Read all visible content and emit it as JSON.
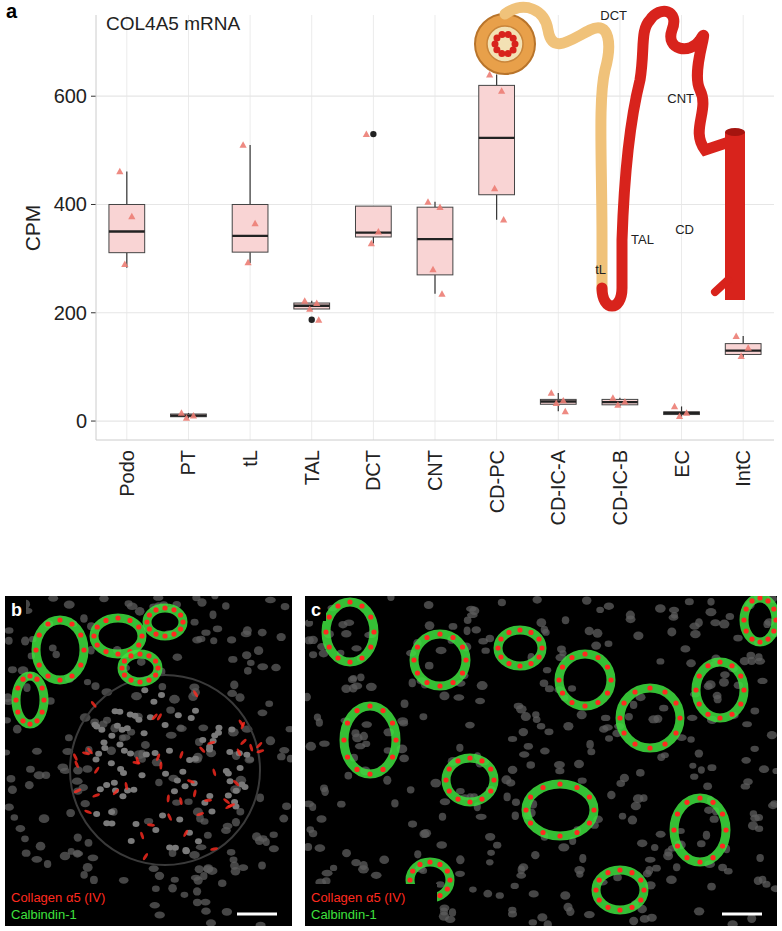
{
  "chart_data": {
    "type": "box",
    "title": "COL4A5 mRNA",
    "y_label": "CPM",
    "categories": [
      "Podo",
      "PT",
      "tL",
      "TAL",
      "DCT",
      "CNT",
      "CD-PC",
      "CD-IC-A",
      "CD-IC-B",
      "EC",
      "IntC"
    ],
    "boxes": [
      {
        "min": 283,
        "q1": 311,
        "median": 350,
        "q3": 400,
        "max": 461,
        "outliers": [],
        "points": [
          461,
          378,
          290
        ]
      },
      {
        "min": 5,
        "q1": 8,
        "median": 10,
        "q3": 13,
        "max": 15,
        "outliers": [],
        "points": [
          15,
          10,
          6
        ]
      },
      {
        "min": 292,
        "q1": 312,
        "median": 342,
        "q3": 400,
        "max": 510,
        "outliers": [],
        "points": [
          510,
          365,
          293
        ]
      },
      {
        "min": 205,
        "q1": 207,
        "median": 213,
        "q3": 218,
        "max": 222,
        "outliers": [
          187
        ],
        "points": [
          222,
          218,
          207,
          187
        ]
      },
      {
        "min": 328,
        "q1": 340,
        "median": 348,
        "q3": 397,
        "max": 397,
        "outliers": [
          530
        ],
        "points": [
          530,
          350,
          328
        ]
      },
      {
        "min": 235,
        "q1": 270,
        "median": 336,
        "q3": 395,
        "max": 405,
        "outliers": [],
        "points": [
          405,
          395,
          280,
          235
        ]
      },
      {
        "min": 372,
        "q1": 418,
        "median": 523,
        "q3": 620,
        "max": 640,
        "outliers": [],
        "points": [
          640,
          610,
          430,
          372
        ]
      },
      {
        "min": 18,
        "q1": 31,
        "median": 36,
        "q3": 40,
        "max": 52,
        "outliers": [],
        "points": [
          52,
          38,
          33,
          18
        ]
      },
      {
        "min": 28,
        "q1": 30,
        "median": 35,
        "q3": 40,
        "max": 43,
        "outliers": [],
        "points": [
          43,
          36,
          30
        ]
      },
      {
        "min": 8,
        "q1": 12,
        "median": 15,
        "q3": 17,
        "max": 27,
        "outliers": [],
        "points": [
          27,
          15,
          9
        ]
      },
      {
        "min": 118,
        "q1": 123,
        "median": 130,
        "q3": 143,
        "max": 157,
        "outliers": [],
        "points": [
          157,
          135,
          120
        ]
      }
    ],
    "color": "#f9d4d4",
    "marker": "triangle",
    "ylim": [
      -35,
      750
    ],
    "yticks": [
      0,
      200,
      400,
      600
    ],
    "grid": true
  },
  "figure": {
    "panel_labels": [
      "a",
      "b",
      "c"
    ],
    "diagram_labels": [
      "DCT",
      "CNT",
      "TAL",
      "tL",
      "CD"
    ],
    "stain_labels": [
      {
        "text": "Collagen α5 (IV)",
        "color": "#ff2a1f"
      },
      {
        "text": "Calbindin-1",
        "color": "#3ee03e"
      }
    ]
  }
}
